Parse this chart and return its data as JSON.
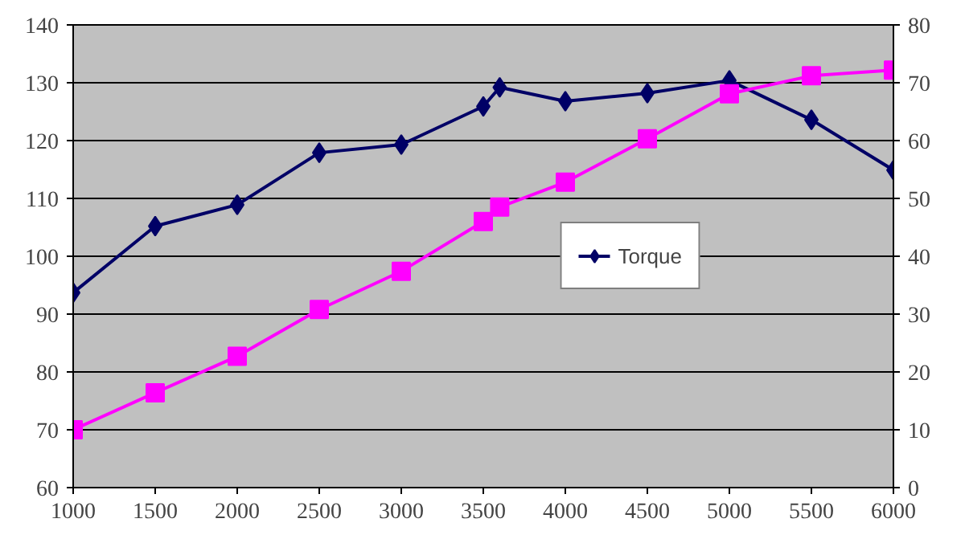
{
  "chart_data": {
    "type": "line",
    "x": [
      1000,
      1500,
      2000,
      2500,
      3000,
      3500,
      3600,
      4000,
      4500,
      5000,
      5500,
      6000
    ],
    "series": [
      {
        "name": "Torque",
        "color": "#000066",
        "marker": "diamond",
        "values": [
          93.7,
          105.2,
          108.9,
          117.9,
          119.3,
          125.9,
          129.2,
          126.8,
          128.2,
          130.4,
          123.6,
          114.9
        ]
      },
      {
        "color": "#ff00ff",
        "marker": "square",
        "axis": "y2",
        "values": [
          10,
          16.4,
          22.7,
          30.8,
          37.4,
          46,
          48.5,
          52.8,
          60.3,
          68.1,
          71.2,
          72.2
        ]
      }
    ],
    "xlim": [
      1000,
      6000
    ],
    "xticks": [
      1000,
      1500,
      2000,
      2500,
      3000,
      3500,
      4000,
      4500,
      5000,
      5500,
      6000
    ],
    "ylim": [
      60,
      140
    ],
    "yticks": [
      60,
      70,
      80,
      90,
      100,
      110,
      120,
      130,
      140
    ],
    "y2lim": [
      0,
      80
    ],
    "y2ticks": [
      0,
      10,
      20,
      30,
      40,
      50,
      60,
      70,
      80
    ],
    "grid": "y",
    "legend": "right",
    "line_style": "solid"
  }
}
